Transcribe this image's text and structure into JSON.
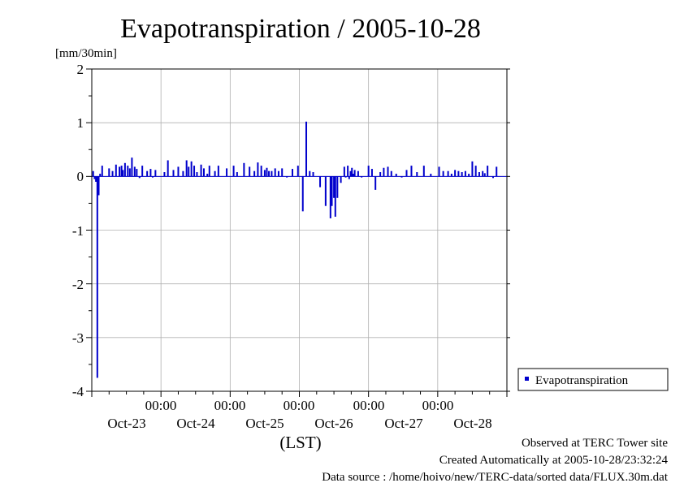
{
  "chart_data": {
    "type": "bar",
    "title": "Evapotranspiration / 2005-10-28",
    "ylabel": "[mm/30min]",
    "xlabel": "(LST)",
    "ylim": [
      -4,
      2
    ],
    "yticks": [
      "2",
      "1",
      "0",
      "-1",
      "-2",
      "-3",
      "-4"
    ],
    "xlim_days": [
      0,
      6
    ],
    "xtick_days": [
      1,
      2,
      3,
      4,
      5
    ],
    "time_labels": [
      "00:00",
      "00:00",
      "00:00",
      "00:00",
      "00:00"
    ],
    "day_labels": [
      "Oct-23",
      "Oct-24",
      "Oct-25",
      "Oct-26",
      "Oct-27",
      "Oct-28"
    ],
    "grid": true,
    "legend_position": "right",
    "series": [
      {
        "name": "Evapotranspiration",
        "color": "#0000cc",
        "x_days": [
          0.02,
          0.04,
          0.06,
          0.08,
          0.1,
          0.12,
          0.15,
          0.25,
          0.3,
          0.35,
          0.4,
          0.43,
          0.45,
          0.48,
          0.52,
          0.55,
          0.58,
          0.62,
          0.65,
          0.69,
          0.73,
          0.8,
          0.85,
          0.88,
          0.92,
          1.05,
          1.1,
          1.18,
          1.25,
          1.32,
          1.37,
          1.4,
          1.44,
          1.48,
          1.52,
          1.58,
          1.62,
          1.67,
          1.7,
          1.78,
          1.83,
          1.95,
          2.05,
          2.1,
          2.2,
          2.28,
          2.35,
          2.4,
          2.45,
          2.5,
          2.53,
          2.56,
          2.6,
          2.65,
          2.7,
          2.75,
          2.82,
          2.9,
          2.98,
          3.05,
          3.1,
          3.15,
          3.2,
          3.3,
          3.38,
          3.45,
          3.47,
          3.5,
          3.52,
          3.55,
          3.6,
          3.65,
          3.67,
          3.7,
          3.72,
          3.74,
          3.76,
          3.78,
          3.8,
          3.85,
          3.9,
          4.0,
          4.05,
          4.1,
          4.17,
          4.22,
          4.28,
          4.33,
          4.4,
          4.48,
          4.55,
          4.62,
          4.7,
          4.8,
          4.9,
          5.02,
          5.08,
          5.15,
          5.2,
          5.25,
          5.3,
          5.35,
          5.4,
          5.45,
          5.5,
          5.55,
          5.6,
          5.65,
          5.68,
          5.72,
          5.8,
          5.85
        ],
        "values": [
          0.1,
          -0.05,
          -0.1,
          -3.75,
          -0.35,
          0.05,
          0.2,
          0.15,
          0.1,
          0.22,
          0.18,
          0.2,
          0.12,
          0.25,
          0.2,
          0.15,
          0.35,
          0.18,
          0.14,
          -0.03,
          0.2,
          0.1,
          0.14,
          -0.02,
          0.12,
          0.08,
          0.3,
          0.12,
          0.18,
          0.1,
          0.3,
          0.18,
          0.28,
          0.2,
          0.08,
          0.22,
          0.15,
          0.05,
          0.2,
          0.1,
          0.2,
          0.15,
          0.2,
          0.08,
          0.25,
          0.18,
          0.1,
          0.26,
          0.2,
          0.12,
          0.16,
          0.1,
          0.1,
          0.15,
          0.1,
          0.15,
          -0.02,
          0.14,
          0.2,
          -0.65,
          1.02,
          0.1,
          0.08,
          -0.2,
          -0.55,
          -0.78,
          -0.55,
          -0.4,
          -0.75,
          -0.4,
          -0.12,
          0.18,
          -0.02,
          0.2,
          -0.05,
          0.1,
          0.16,
          0.05,
          0.12,
          0.1,
          -0.02,
          0.2,
          0.14,
          -0.25,
          0.08,
          0.16,
          0.18,
          0.1,
          0.05,
          -0.02,
          0.12,
          0.2,
          0.08,
          0.2,
          0.05,
          0.18,
          0.1,
          0.1,
          0.05,
          0.12,
          0.1,
          0.08,
          0.1,
          0.05,
          0.28,
          0.2,
          0.08,
          0.1,
          0.06,
          0.2,
          -0.03,
          0.18
        ]
      }
    ]
  },
  "legend": {
    "label": "Evapotranspiration"
  },
  "footer": {
    "observed": "Observed at TERC Tower site",
    "created": "Created Automatically at 2005-10-28/23:32:24",
    "source": "Data source : /home/hoivo/new/TERC-data/sorted  data/FLUX.30m.dat"
  }
}
